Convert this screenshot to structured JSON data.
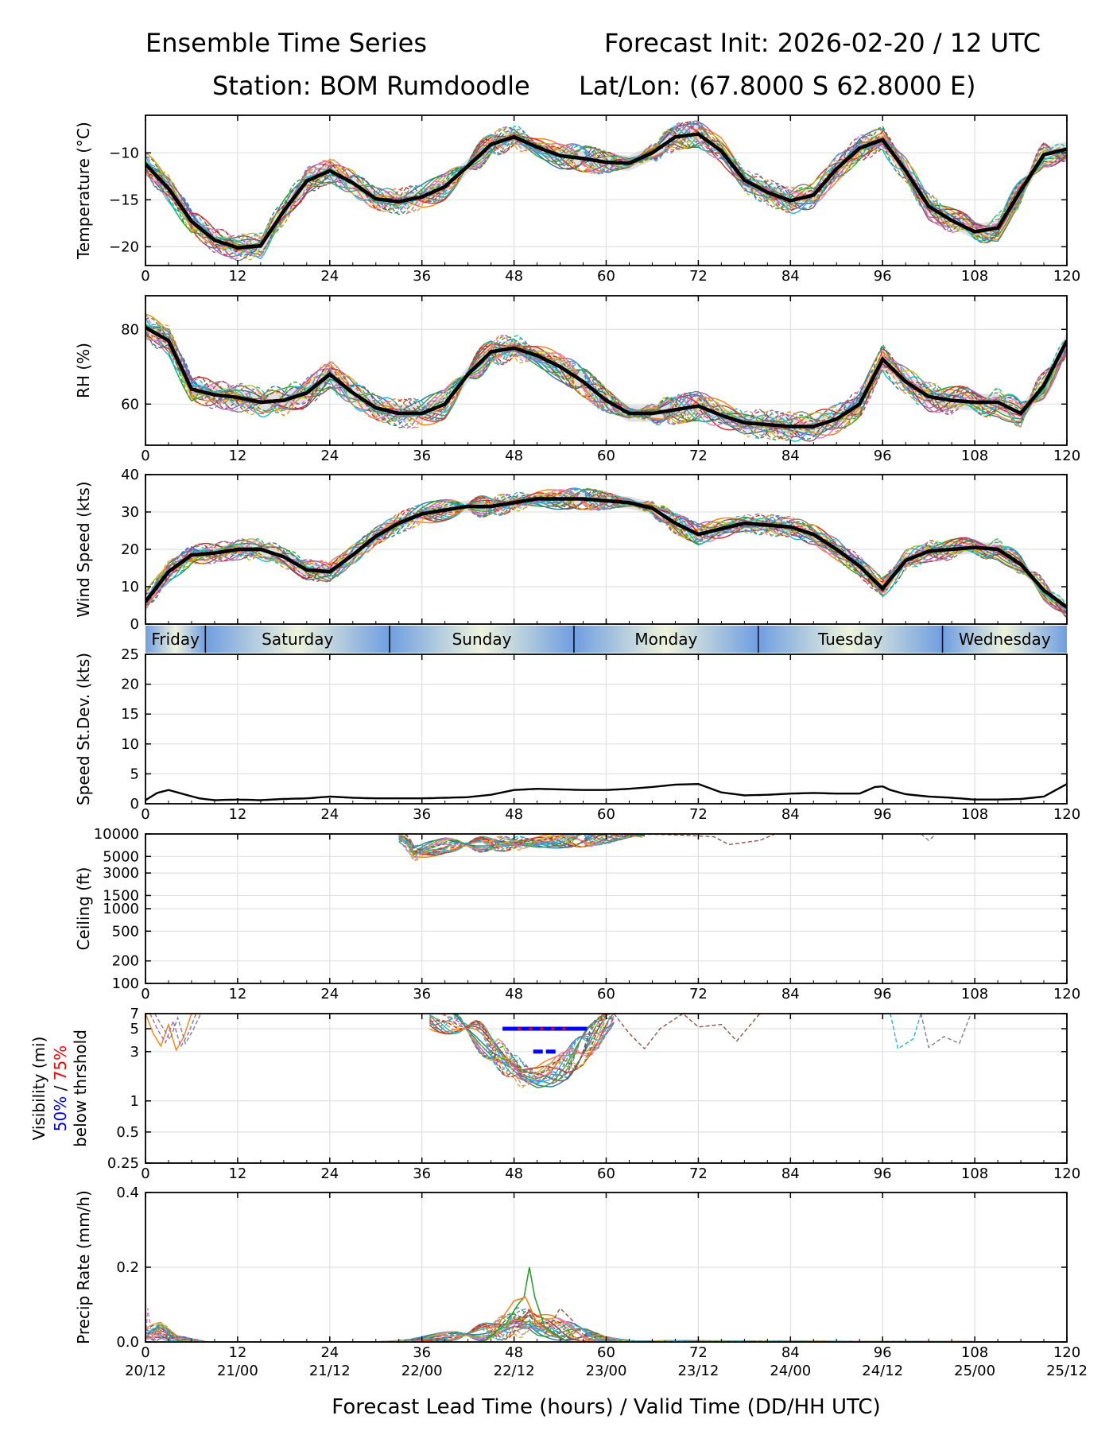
{
  "header": {
    "title_left": "Ensemble Time Series",
    "title_right": "Forecast Init: 2026-02-20 / 12 UTC",
    "station": "Station: BOM Rumdoodle",
    "latlon": "Lat/Lon: (67.8000 S 62.8000 E)"
  },
  "xaxis": {
    "lead_ticks": [
      "0",
      "12",
      "24",
      "36",
      "48",
      "60",
      "72",
      "84",
      "96",
      "108",
      "120"
    ],
    "valid_ticks": [
      "20/12",
      "21/00",
      "21/12",
      "22/00",
      "22/12",
      "23/00",
      "23/12",
      "24/00",
      "24/12",
      "25/00",
      "25/12"
    ],
    "xlabel": "Forecast Lead Time (hours) / Valid Time (DD/HH UTC)",
    "xlim": [
      0,
      120
    ]
  },
  "day_band": [
    {
      "label": "Friday",
      "start": 0,
      "end": 7.8
    },
    {
      "label": "Saturday",
      "start": 7.8,
      "end": 31.8
    },
    {
      "label": "Sunday",
      "start": 31.8,
      "end": 55.8
    },
    {
      "label": "Monday",
      "start": 55.8,
      "end": 79.8
    },
    {
      "label": "Tuesday",
      "start": 79.8,
      "end": 103.8
    },
    {
      "label": "Wednesday",
      "start": 103.8,
      "end": 120
    }
  ],
  "colors": {
    "members": [
      "#1f77b4",
      "#ff7f0e",
      "#2ca02c",
      "#d62728",
      "#9467bd",
      "#8c564b",
      "#e377c2",
      "#7f7f7f",
      "#bcbd22",
      "#17becf"
    ],
    "mean": "#000000",
    "vis_50": "#0000ff",
    "vis_75": "#ff0000",
    "day_blue": "#6f9ee0",
    "day_cream": "#eef3dc"
  },
  "chart_data": [
    {
      "type": "line",
      "id": "temp",
      "ylabel": "Temperature (°C)",
      "ylim": [
        -22,
        -6
      ],
      "yticks": [
        -20,
        -15,
        -10
      ],
      "ytick_labels": [
        "−20",
        "−15",
        "−10"
      ],
      "x": [
        0,
        3,
        6,
        9,
        12,
        15,
        18,
        21,
        24,
        27,
        30,
        33,
        36,
        39,
        42,
        45,
        48,
        51,
        54,
        57,
        60,
        63,
        66,
        69,
        72,
        75,
        78,
        81,
        84,
        87,
        90,
        93,
        96,
        99,
        102,
        105,
        108,
        111,
        114,
        117,
        120
      ],
      "mean": [
        -11.2,
        -13.8,
        -17.3,
        -19.3,
        -20.1,
        -19.9,
        -16.2,
        -13.0,
        -11.9,
        -13.2,
        -14.9,
        -15.2,
        -14.7,
        -13.6,
        -11.4,
        -9.1,
        -8.3,
        -9.4,
        -10.3,
        -10.6,
        -11.0,
        -11.1,
        -10.0,
        -8.3,
        -8.0,
        -9.8,
        -12.9,
        -14.2,
        -15.1,
        -14.5,
        -11.7,
        -9.5,
        -8.6,
        -11.9,
        -15.7,
        -17.2,
        -18.4,
        -18.0,
        -14.0,
        -10.2,
        -9.6
      ],
      "spread": 0.9
    },
    {
      "type": "line",
      "id": "rh",
      "ylabel": "RH (%)",
      "ylim": [
        49,
        89
      ],
      "yticks": [
        60,
        80
      ],
      "ytick_labels": [
        "60",
        "80"
      ],
      "x": [
        0,
        3,
        6,
        9,
        12,
        15,
        18,
        21,
        24,
        27,
        30,
        33,
        36,
        39,
        42,
        45,
        48,
        51,
        54,
        57,
        60,
        63,
        66,
        69,
        72,
        75,
        78,
        81,
        84,
        87,
        90,
        93,
        96,
        99,
        102,
        105,
        108,
        111,
        114,
        117,
        120
      ],
      "mean": [
        80.5,
        77.0,
        64.0,
        62.5,
        61.8,
        60.5,
        61.0,
        63.0,
        68.0,
        63.0,
        59.0,
        57.5,
        57.5,
        60.0,
        68.0,
        74.0,
        75.0,
        73.0,
        70.0,
        66.0,
        61.0,
        57.5,
        57.5,
        58.5,
        59.5,
        57.0,
        55.0,
        54.5,
        54.0,
        54.0,
        56.0,
        60.0,
        72.0,
        66.0,
        62.0,
        61.0,
        60.5,
        60.5,
        57.5,
        65.0,
        77.0
      ],
      "spread": 2.5
    },
    {
      "type": "line",
      "id": "wind",
      "ylabel": "Wind Speed (kts)",
      "ylim": [
        0,
        40
      ],
      "yticks": [
        0,
        10,
        20,
        30,
        40
      ],
      "ytick_labels": [
        "0",
        "10",
        "20",
        "30",
        "40"
      ],
      "x": [
        0,
        3,
        6,
        9,
        12,
        15,
        18,
        21,
        24,
        27,
        30,
        33,
        36,
        39,
        42,
        45,
        48,
        51,
        54,
        57,
        60,
        63,
        66,
        69,
        72,
        75,
        78,
        81,
        84,
        87,
        90,
        93,
        96,
        99,
        102,
        105,
        108,
        111,
        114,
        117,
        120
      ],
      "mean": [
        6.0,
        14.0,
        18.5,
        19.0,
        20.0,
        20.0,
        18.0,
        14.5,
        14.0,
        18.5,
        23.5,
        27.0,
        29.5,
        30.5,
        31.5,
        31.5,
        32.5,
        33.5,
        33.5,
        33.5,
        33.0,
        32.5,
        31.0,
        27.0,
        24.0,
        25.5,
        27.0,
        26.5,
        26.0,
        24.0,
        20.0,
        15.5,
        9.5,
        17.0,
        19.5,
        20.0,
        20.5,
        20.0,
        16.0,
        9.0,
        4.5
      ],
      "spread": 1.8
    },
    {
      "type": "line",
      "id": "sdev",
      "ylabel": "Speed St.Dev. (kts)",
      "ylim": [
        0,
        25
      ],
      "yticks": [
        0,
        5,
        10,
        15,
        20,
        25
      ],
      "ytick_labels": [
        "0",
        "5",
        "10",
        "15",
        "20",
        "25"
      ],
      "x": [
        0,
        1.5,
        3,
        5,
        7,
        9,
        12,
        15,
        18,
        21,
        24,
        27,
        30,
        33,
        36,
        39,
        42,
        45,
        48,
        51,
        54,
        57,
        60,
        63,
        66,
        69,
        72,
        75,
        78,
        81,
        84,
        87,
        90,
        93,
        95,
        96,
        97,
        99,
        102,
        105,
        108,
        111,
        114,
        117,
        120
      ],
      "values": [
        0.6,
        1.8,
        2.3,
        1.6,
        0.9,
        0.6,
        0.7,
        0.6,
        0.8,
        0.9,
        1.2,
        1.0,
        0.9,
        0.9,
        0.9,
        1.0,
        1.1,
        1.5,
        2.3,
        2.5,
        2.4,
        2.3,
        2.3,
        2.5,
        2.8,
        3.2,
        3.3,
        1.9,
        1.4,
        1.5,
        1.7,
        1.8,
        1.7,
        1.7,
        2.8,
        2.9,
        2.3,
        1.6,
        1.2,
        1.0,
        0.7,
        0.7,
        0.8,
        1.2,
        3.3
      ]
    },
    {
      "type": "line",
      "id": "ceiling",
      "ylabel": "Ceiling (ft)",
      "scale": "log",
      "ylim": [
        100,
        10000
      ],
      "yticks": [
        100,
        200,
        500,
        1000,
        1500,
        3000,
        5000,
        10000
      ],
      "ytick_labels": [
        "100",
        "200",
        "500",
        "1000",
        "1500",
        "3000",
        "5000",
        "10000"
      ],
      "x": [
        33,
        35,
        37,
        39,
        42,
        45,
        48,
        51,
        54,
        57,
        60,
        63,
        65
      ],
      "values": [
        10000,
        5500,
        6200,
        7000,
        7200,
        7300,
        7400,
        7800,
        8200,
        8500,
        9000,
        9700,
        10000
      ],
      "spread": 0.12
    },
    {
      "type": "line",
      "id": "vis",
      "ylabel": "Visibility (mi)",
      "ylabel_50": "50%",
      "ylabel_sep": " / ",
      "ylabel_75": "75%",
      "ylabel_suffix": "below thrshold",
      "scale": "log",
      "ylim": [
        0.25,
        7
      ],
      "yticks": [
        0.25,
        0.5,
        1,
        3,
        5,
        7
      ],
      "ytick_labels": [
        "0.25",
        "0.5",
        "1",
        "3",
        "5",
        "7"
      ],
      "x": [
        37,
        40,
        43,
        45,
        47,
        49,
        51,
        53,
        55,
        57,
        59,
        61
      ],
      "values": [
        7,
        6,
        4.5,
        3.2,
        2.4,
        1.8,
        1.7,
        1.9,
        2.3,
        3.2,
        4.6,
        7
      ],
      "spread": 0.18,
      "threshold_50": [
        {
          "x0": 46.5,
          "x1": 57.5,
          "y": 5
        },
        {
          "x0": 50.5,
          "x1": 53.5,
          "y": 3
        }
      ],
      "threshold_75": [
        {
          "x0": 48.5,
          "x1": 55.5,
          "y": 5
        }
      ]
    },
    {
      "type": "line",
      "id": "precip",
      "ylabel": "Precip Rate (mm/h)",
      "ylim": [
        0,
        0.4
      ],
      "yticks": [
        0,
        0.2,
        0.4
      ],
      "ytick_labels": [
        "0.0",
        "0.2",
        "0.4"
      ],
      "x": [
        0,
        2,
        4,
        6,
        8,
        10,
        30,
        34,
        38,
        42,
        45,
        47,
        48,
        49,
        50,
        51,
        53,
        55,
        57,
        60,
        64,
        120
      ],
      "values": [
        0.02,
        0.03,
        0.01,
        0.005,
        0.0,
        0.0,
        0.0,
        0.003,
        0.012,
        0.02,
        0.03,
        0.04,
        0.05,
        0.05,
        0.06,
        0.045,
        0.04,
        0.03,
        0.02,
        0.008,
        0.002,
        0.0
      ],
      "peak_member": {
        "x": 50,
        "y": 0.2
      }
    }
  ]
}
